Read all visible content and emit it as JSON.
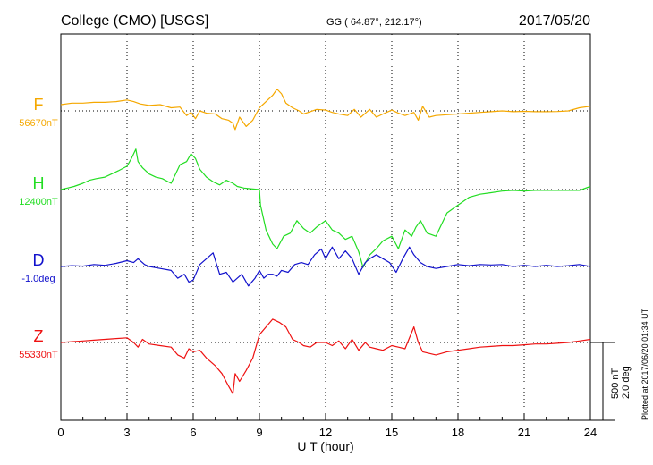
{
  "header": {
    "station": "College (CMO)  [USGS]",
    "coords": "GG ( 64.87°, 212.17°)",
    "date": "2017/05/20"
  },
  "side_note": "Plotted at 2017/06/20 01:34  UT",
  "scale": {
    "nt": "500 nT",
    "deg": "2.0 deg"
  },
  "chart_data": {
    "type": "line",
    "xlabel": "U T (hour)",
    "xlim": [
      0,
      24
    ],
    "x_ticks": [
      "0",
      "3",
      "6",
      "9",
      "12",
      "15",
      "18",
      "21",
      "24"
    ],
    "grid": true,
    "scale_bar_nT": 500,
    "scale_bar_deg": 2.0,
    "series": [
      {
        "name": "F",
        "baseline": "56670nT",
        "color": "#f5a800",
        "x": [
          0,
          0.5,
          1,
          1.5,
          2,
          2.5,
          3,
          3.3,
          3.6,
          4,
          4.5,
          5,
          5.4,
          5.7,
          5.9,
          6.1,
          6.3,
          6.6,
          7,
          7.3,
          7.6,
          7.8,
          7.9,
          8.1,
          8.4,
          8.7,
          9,
          9.3,
          9.6,
          9.8,
          10,
          10.2,
          10.5,
          10.8,
          11,
          11.3,
          11.6,
          12,
          12.3,
          12.6,
          13,
          13.3,
          13.6,
          14,
          14.3,
          14.6,
          15,
          15.3,
          15.6,
          16,
          16.2,
          16.4,
          16.7,
          17,
          17.5,
          18,
          18.5,
          19,
          19.5,
          20,
          20.5,
          21,
          21.5,
          22,
          22.5,
          23,
          23.5,
          24
        ],
        "y": [
          40,
          50,
          50,
          55,
          55,
          60,
          70,
          60,
          45,
          35,
          40,
          20,
          25,
          -30,
          -10,
          -50,
          0,
          -15,
          -20,
          -50,
          -60,
          -80,
          -120,
          -40,
          -100,
          -60,
          20,
          60,
          100,
          140,
          110,
          50,
          20,
          0,
          -20,
          -5,
          10,
          5,
          -10,
          -20,
          -30,
          10,
          -40,
          10,
          -40,
          -20,
          5,
          -15,
          -30,
          -10,
          -60,
          30,
          -40,
          -30,
          -25,
          -20,
          -15,
          -10,
          -5,
          0,
          -5,
          -3,
          -5,
          -5,
          -4,
          0,
          20,
          30
        ]
      },
      {
        "name": "H",
        "baseline": "12400nT",
        "color": "#22dd22",
        "x": [
          0,
          0.3,
          0.6,
          1,
          1.3,
          1.6,
          2,
          2.3,
          2.6,
          3,
          3.2,
          3.4,
          3.5,
          3.7,
          4,
          4.3,
          4.6,
          5,
          5.2,
          5.4,
          5.7,
          5.9,
          6.1,
          6.3,
          6.6,
          6.9,
          7.2,
          7.5,
          7.8,
          8,
          8.3,
          8.6,
          9,
          9.05,
          9.3,
          9.6,
          9.8,
          10.1,
          10.4,
          10.7,
          11,
          11.3,
          11.6,
          12,
          12.3,
          12.6,
          12.9,
          13.2,
          13.5,
          13.7,
          14,
          14.3,
          14.6,
          15,
          15.3,
          15.6,
          15.9,
          16.1,
          16.3,
          16.6,
          17,
          17.5,
          18,
          18.5,
          19,
          19.5,
          20,
          20.5,
          21,
          21.5,
          22,
          22.5,
          23,
          23.5,
          24
        ],
        "y": [
          0,
          10,
          20,
          40,
          60,
          70,
          80,
          100,
          120,
          150,
          200,
          260,
          180,
          140,
          100,
          80,
          70,
          40,
          100,
          160,
          180,
          230,
          200,
          130,
          80,
          50,
          30,
          60,
          40,
          20,
          10,
          5,
          0,
          -100,
          -260,
          -350,
          -380,
          -300,
          -280,
          -200,
          -250,
          -280,
          -240,
          -200,
          -260,
          -280,
          -320,
          -300,
          -400,
          -500,
          -420,
          -380,
          -330,
          -300,
          -380,
          -260,
          -300,
          -240,
          -200,
          -280,
          -300,
          -150,
          -100,
          -50,
          -30,
          -20,
          -10,
          -5,
          -10,
          -5,
          -5,
          -5,
          -5,
          -5,
          20
        ]
      },
      {
        "name": "D",
        "baseline": "-1.0deg",
        "color": "#1111cc",
        "x": [
          0,
          0.5,
          1,
          1.5,
          2,
          2.5,
          3,
          3.3,
          3.5,
          3.8,
          4,
          4.5,
          5,
          5.3,
          5.6,
          5.8,
          6,
          6.3,
          6.6,
          6.9,
          7.2,
          7.5,
          7.8,
          8,
          8.2,
          8.5,
          8.8,
          9,
          9.2,
          9.4,
          9.6,
          9.8,
          10,
          10.3,
          10.6,
          10.9,
          11.2,
          11.5,
          11.8,
          12,
          12.3,
          12.6,
          12.9,
          13.2,
          13.5,
          13.8,
          14,
          14.3,
          14.6,
          14.9,
          15.2,
          15.5,
          15.8,
          16,
          16.3,
          16.6,
          17,
          17.5,
          18,
          18.5,
          19,
          19.5,
          20,
          20.5,
          21,
          21.5,
          22,
          22.5,
          23,
          23.5,
          24
        ],
        "y": [
          0,
          0.02,
          0.01,
          0.05,
          0.03,
          0.08,
          0.15,
          0.1,
          0.2,
          0.05,
          0,
          -0.05,
          -0.1,
          -0.3,
          -0.2,
          -0.4,
          -0.35,
          0.05,
          0.2,
          0.35,
          -0.2,
          -0.15,
          -0.4,
          -0.3,
          -0.2,
          -0.5,
          -0.3,
          -0.1,
          -0.3,
          -0.2,
          -0.2,
          -0.25,
          -0.1,
          -0.15,
          0.05,
          0.1,
          0.05,
          0.3,
          0.45,
          0.2,
          0.5,
          0.2,
          0.4,
          0.2,
          -0.2,
          0.1,
          0.2,
          0.3,
          0.2,
          0.1,
          -0.15,
          0.2,
          0.5,
          0.3,
          0.1,
          0,
          -0.05,
          0,
          0.05,
          0.02,
          0.05,
          0.04,
          0.05,
          0,
          0.03,
          0,
          0.03,
          0,
          0.02,
          0.05,
          0
        ]
      },
      {
        "name": "Z",
        "baseline": "55330nT",
        "color": "#ee1111",
        "x": [
          0,
          0.5,
          1,
          1.5,
          2,
          2.5,
          3,
          3.3,
          3.5,
          3.7,
          4,
          4.5,
          5,
          5.3,
          5.6,
          5.8,
          6,
          6.3,
          6.6,
          7,
          7.3,
          7.6,
          7.8,
          7.9,
          8.1,
          8.4,
          8.7,
          9,
          9.3,
          9.6,
          9.9,
          10.2,
          10.5,
          10.8,
          11,
          11.3,
          11.6,
          12,
          12.3,
          12.6,
          12.9,
          13.2,
          13.5,
          13.8,
          14,
          14.3,
          14.6,
          15,
          15.3,
          15.6,
          16,
          16.2,
          16.4,
          16.7,
          17,
          17.5,
          18,
          18.5,
          19,
          19.5,
          20,
          20.5,
          21,
          21.5,
          22,
          22.5,
          23,
          23.5,
          24
        ],
        "y": [
          0,
          5,
          10,
          15,
          20,
          25,
          30,
          0,
          -30,
          20,
          -10,
          -20,
          -30,
          -80,
          -100,
          -40,
          -60,
          -50,
          -100,
          -150,
          -200,
          -280,
          -330,
          -200,
          -250,
          -180,
          -100,
          50,
          100,
          150,
          130,
          100,
          20,
          0,
          -20,
          -30,
          0,
          0,
          -20,
          10,
          -40,
          20,
          -50,
          0,
          -30,
          -40,
          -50,
          -20,
          -30,
          -40,
          100,
          0,
          -60,
          -70,
          -80,
          -60,
          -50,
          -40,
          -30,
          -25,
          -20,
          -20,
          -15,
          -10,
          -10,
          -5,
          0,
          10,
          20
        ]
      }
    ]
  }
}
